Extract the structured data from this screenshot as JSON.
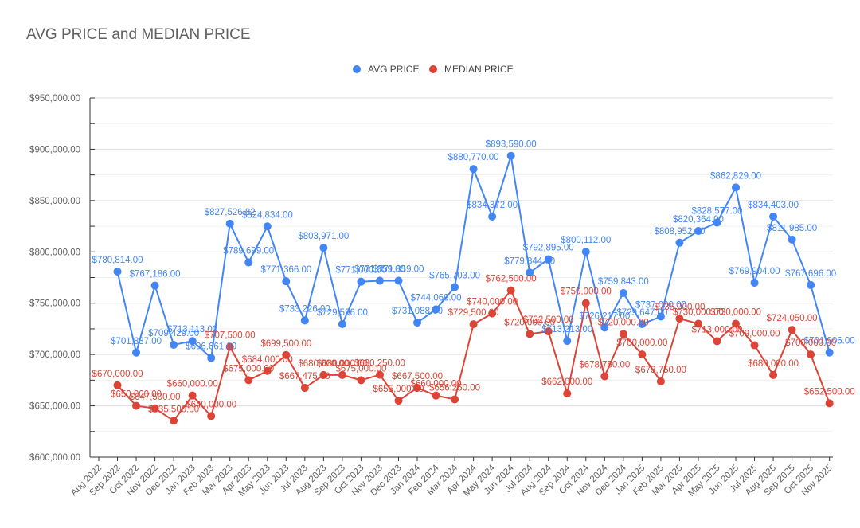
{
  "chart_data": {
    "type": "line",
    "title": "AVG PRICE and MEDIAN PRICE",
    "xlabel": "",
    "ylabel": "",
    "ylim": [
      600000,
      950000
    ],
    "yticks": [
      "$600,000.00",
      "$650,000.00",
      "$700,000.00",
      "$750,000.00",
      "$800,000.00",
      "$850,000.00",
      "$900,000.00",
      "$950,000.00"
    ],
    "grid": true,
    "legend_position": "top",
    "categories": [
      "Aug 2022",
      "Sep 2022",
      "Oct 2022",
      "Nov 2022",
      "Dec 2022",
      "Jan 2023",
      "Feb 2023",
      "Mar 2023",
      "Apr 2023",
      "May 2023",
      "Jun 2023",
      "Jul 2023",
      "Aug 2023",
      "Sep 2023",
      "Oct 2023",
      "Nov 2023",
      "Dec 2023",
      "Jan 2024",
      "Feb 2024",
      "Mar 2024",
      "Apr 2024",
      "May 2024",
      "Jun 2024",
      "Jul 2024",
      "Aug 2024",
      "Sep 2024",
      "Oct 2024",
      "Nov 2024",
      "Dec 2024",
      "Jan 2025",
      "Feb 2025",
      "Mar 2025",
      "Apr 2025",
      "May 2025",
      "Jun 2025",
      "Jul 2025",
      "Aug 2025",
      "Sep 2025",
      "Oct 2025",
      "Nov 2025"
    ],
    "series": [
      {
        "name": "AVG PRICE",
        "color": "#4285f4",
        "values": [
          null,
          780814,
          701837,
          767186,
          709429,
          713113,
          696661,
          827526.82,
          789699,
          824834,
          771366,
          733226,
          803971,
          729596,
          771000,
          771859,
          771859,
          731088,
          744069,
          765703,
          880770,
          834372,
          893590,
          779844,
          792895,
          713213,
          800112,
          726217,
          759843,
          729647,
          737000,
          808952,
          820364,
          828577,
          862829,
          769904,
          834403,
          811985,
          767696,
          701906
        ],
        "labels": [
          "",
          "$780,814.00",
          "$701,837.00",
          "$767,186.00",
          "$709,429.00",
          "$713,113.00",
          "$696,661.00",
          "$827,526.82",
          "$789,699.00",
          "$824,834.00",
          "$771,366.00",
          "$733,226.00",
          "$803,971.00",
          "$729,596.00",
          "$771,000.00",
          "$771,859.00",
          "$771,859.00",
          "$731,088.00",
          "$744,069.00",
          "$765,703.00",
          "$880,770.00",
          "$834,372.00",
          "$893,590.00",
          "$779,844.00",
          "$792,895.00",
          "$713,213.00",
          "$800,112.00",
          "$726,217.00",
          "$759,843.00",
          "$729,647.00",
          "$737,000.00",
          "$808,952.00",
          "$820,364.00",
          "$828,577.00",
          "$862,829.00",
          "$769,904.00",
          "$834,403.00",
          "$811,985.00",
          "$767,696.00",
          "$701,906.00"
        ]
      },
      {
        "name": "MEDIAN PRICE",
        "color": "#db4437",
        "values": [
          null,
          670000,
          650000,
          647500,
          635500,
          660000,
          640000,
          707500,
          675000,
          684000,
          699500,
          667475,
          680000,
          680000,
          675000,
          680250,
          655000,
          667500,
          660000,
          656250,
          729500,
          740000,
          762500,
          720000,
          722500,
          662000,
          750000,
          678750,
          720000,
          700000,
          673750,
          735000,
          730000,
          713000,
          730000,
          709000,
          680000,
          724050,
          700000,
          652500
        ],
        "labels": [
          "",
          "$670,000.00",
          "$650,000.00",
          "$647,500.00",
          "$635,500.00",
          "$660,000.00",
          "$640,000.00",
          "$707,500.00",
          "$675,000.00",
          "$684,000.00",
          "$699,500.00",
          "$667,475.00",
          "$680,000.00",
          "$680,000.00",
          "$675,000.00",
          "$680,250.00",
          "$655,000.00",
          "$667,500.00",
          "$660,000.00",
          "$656,250.00",
          "$729,500.00",
          "$740,000.00",
          "$762,500.00",
          "$720,000.00",
          "$722,500.00",
          "$662,000.00",
          "$750,000.00",
          "$678,750.00",
          "$720,000.00",
          "$700,000.00",
          "$673,750.00",
          "$735,000.00",
          "$730,000.00",
          "$713,000.00",
          "$730,000.00",
          "$709,000.00",
          "$680,000.00",
          "$724,050.00",
          "$700,000.00",
          "$652,500.00"
        ]
      }
    ]
  }
}
